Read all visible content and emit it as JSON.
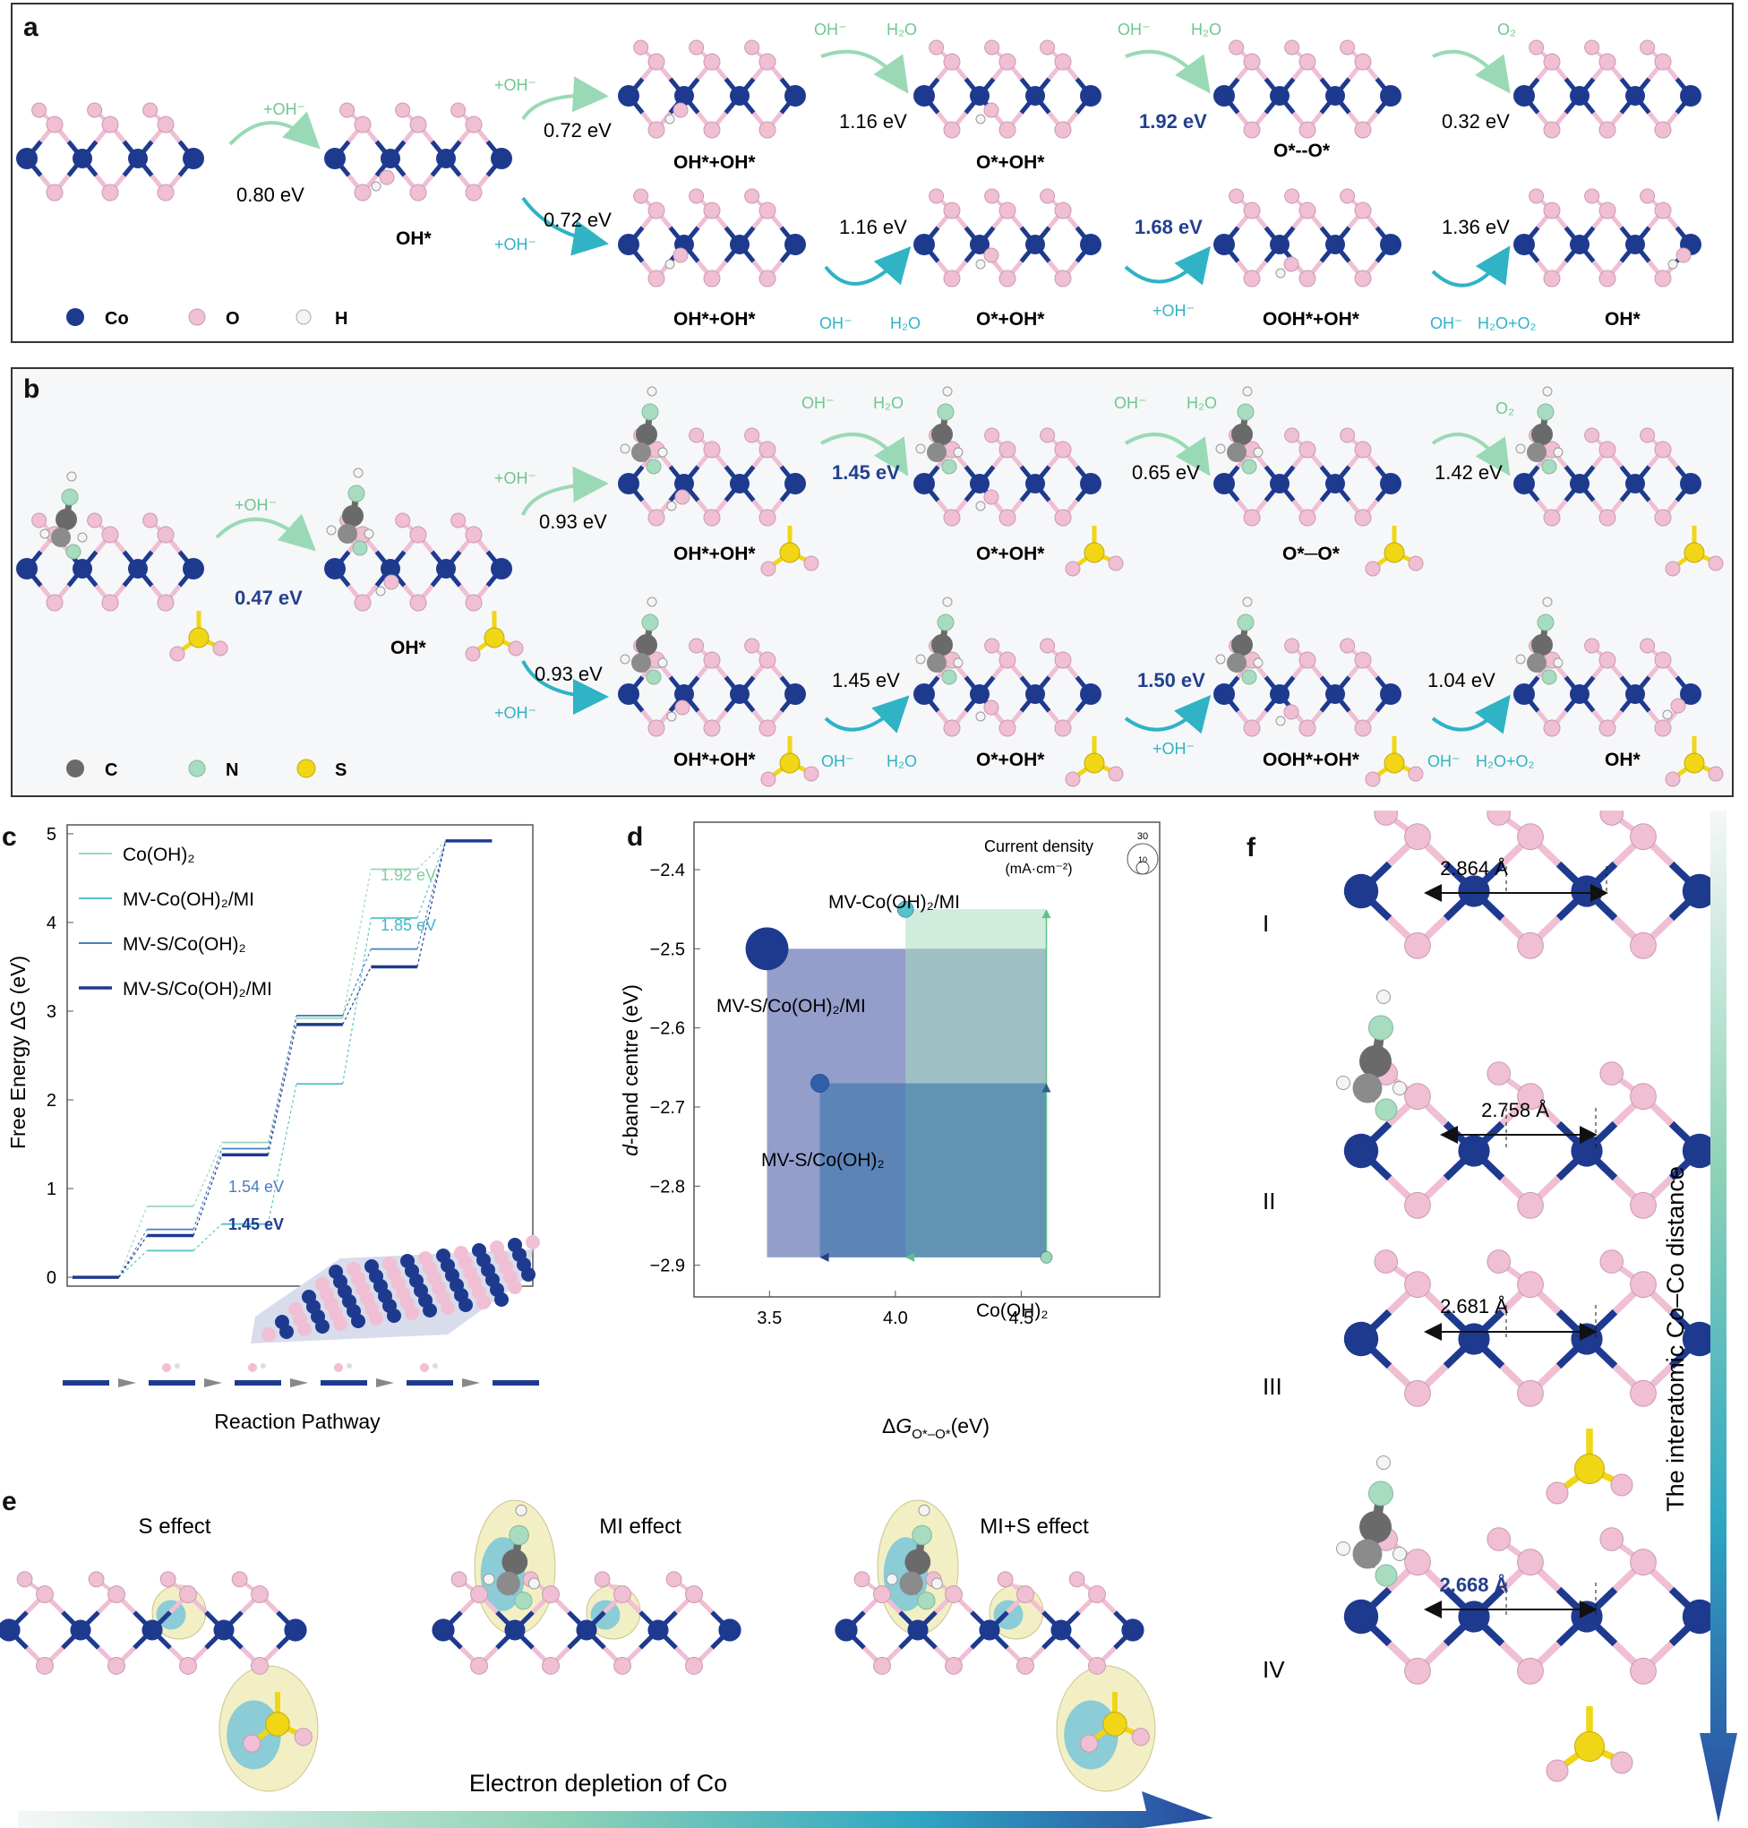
{
  "panel_letters": {
    "a": "a",
    "b": "b",
    "c": "c",
    "d": "d",
    "e": "e",
    "f": "f"
  },
  "colors": {
    "co": "#1e3a8f",
    "o": "#f0bfd4",
    "h": "#f4f4f4",
    "c": "#6a6a6a",
    "n": "#a8dcc0",
    "s": "#f1d615",
    "green": "#7fcf98",
    "teal": "#2fb3c5",
    "blue": "#23408e"
  },
  "panel_a": {
    "step1": {
      "reagent": "+OH⁻",
      "energy": "0.80 eV",
      "product": "OH*"
    },
    "top": {
      "branch_reagent": "+OH⁻",
      "branch_energy": "0.72 eV",
      "s2_label": "OH*+OH*",
      "s2_in": "OH⁻",
      "s2_out": "H₂O",
      "s2_energy": "1.16 eV",
      "s3_label": "O*+OH*",
      "s3_in": "OH⁻",
      "s3_out": "H₂O",
      "s3_energy": "1.92 eV",
      "s4_label": "O*--O*",
      "s4_out": "O₂",
      "s4_energy": "0.32 eV"
    },
    "bottom": {
      "branch_reagent": "+OH⁻",
      "branch_energy": "0.72 eV",
      "s2_label": "OH*+OH*",
      "s2_energy": "1.16 eV",
      "s2_in": "OH⁻",
      "s2_out": "H₂O",
      "s3_label": "O*+OH*",
      "s3_energy": "1.68 eV",
      "s3_reagent": "+OH⁻",
      "s4_label": "OOH*+OH*",
      "s4_energy": "1.36 eV",
      "s4_in": "OH⁻",
      "s4_out": "H₂O+O₂",
      "s5_label": "OH*"
    },
    "legend": [
      "Co",
      "O",
      "H"
    ]
  },
  "panel_b": {
    "step1": {
      "reagent": "+OH⁻",
      "energy": "0.47 eV",
      "product": "OH*"
    },
    "top": {
      "branch_reagent": "+OH⁻",
      "branch_energy": "0.93 eV",
      "s2_label": "OH*+OH*",
      "s2_in": "OH⁻",
      "s2_out": "H₂O",
      "s2_energy": "1.45 eV",
      "s3_label": "O*+OH*",
      "s3_in": "OH⁻",
      "s3_out": "H₂O",
      "s3_energy": "0.65 eV",
      "s4_label": "O*─O*",
      "s4_out": "O₂",
      "s4_energy": "1.42 eV"
    },
    "bottom": {
      "branch_reagent": "+OH⁻",
      "branch_energy": "0.93 eV",
      "s2_label": "OH*+OH*",
      "s2_energy": "1.45 eV",
      "s2_in": "OH⁻",
      "s2_out": "H₂O",
      "s3_label": "O*+OH*",
      "s3_energy": "1.50 eV",
      "s3_reagent": "+OH⁻",
      "s4_label": "OOH*+OH*",
      "s4_energy": "1.04 eV",
      "s4_in": "OH⁻",
      "s4_out": "H₂O+O₂",
      "s5_label": "OH*"
    },
    "legend": [
      "C",
      "N",
      "S"
    ]
  },
  "panel_c": {
    "ylabel": "Free Energy ΔG (eV)",
    "xlabel": "Reaction Pathway",
    "legend": [
      "Co(OH)₂",
      "MV-Co(OH)₂/MI",
      "MV-S/Co(OH)₂",
      "MV-S/Co(OH)₂/MI"
    ],
    "annotations": [
      "1.92 eV",
      "1.85 eV",
      "1.54 eV",
      "1.45 eV"
    ]
  },
  "chart_data": [
    {
      "type": "line",
      "title": "",
      "xlabel": "Reaction Pathway",
      "ylabel": "Free Energy ΔG (eV)",
      "ylim": [
        -0.1,
        5.1
      ],
      "yticks": [
        0,
        1,
        2,
        3,
        4,
        5
      ],
      "categories": [
        "0",
        "1",
        "2",
        "3",
        "4",
        "5"
      ],
      "series": [
        {
          "name": "Co(OH)₂",
          "values": [
            0,
            0.8,
            1.52,
            2.92,
            4.6,
            4.92
          ],
          "color": "#9ad9b5"
        },
        {
          "name": "MV-Co(OH)₂/MI",
          "values": [
            0,
            0.3,
            0.6,
            2.18,
            4.05,
            4.92
          ],
          "color": "#55c2cc"
        },
        {
          "name": "MV-S/Co(OH)₂",
          "values": [
            0,
            0.54,
            1.45,
            2.95,
            3.7,
            4.92
          ],
          "color": "#4a7cc0"
        },
        {
          "name": "MV-S/Co(OH)₂/MI",
          "values": [
            0,
            0.47,
            1.38,
            2.85,
            3.5,
            4.92
          ],
          "color": "#1e3a8f"
        }
      ],
      "annotations": [
        {
          "text": "1.92 eV",
          "color": "#7fcf98"
        },
        {
          "text": "1.85 eV",
          "color": "#3fb8c8"
        },
        {
          "text": "1.54 eV",
          "color": "#4a7cc0"
        },
        {
          "text": "1.45 eV",
          "color": "#1e3a8f"
        }
      ]
    },
    {
      "type": "scatter",
      "title": "",
      "xlabel": "ΔG O*–O* (eV)",
      "ylabel": "d-band centre (eV)",
      "xlim": [
        3.2,
        5.05
      ],
      "ylim": [
        -2.94,
        -2.34
      ],
      "xticks": [
        3.5,
        4.0,
        4.5
      ],
      "yticks": [
        -2.4,
        -2.5,
        -2.6,
        -2.7,
        -2.8,
        -2.9
      ],
      "size_legend_title": "Current density",
      "size_legend_unit": "(mA·cm⁻²)",
      "size_legend_values": [
        "30",
        "10"
      ],
      "points": [
        {
          "label": "Co(OH)₂",
          "x": 4.6,
          "y": -2.89,
          "current": 0.5,
          "color": "#9ad9b5"
        },
        {
          "label": "MV-Co(OH)₂/MI",
          "x": 4.04,
          "y": -2.45,
          "current": 2,
          "color": "#55c2cc"
        },
        {
          "label": "MV-S/Co(OH)₂",
          "x": 3.7,
          "y": -2.67,
          "current": 3,
          "color": "#2f5fa8"
        },
        {
          "label": "MV-S/Co(OH)₂/MI",
          "x": 3.49,
          "y": -2.5,
          "current": 30,
          "color": "#1e3a8f"
        }
      ]
    }
  ],
  "panel_e": {
    "labels": [
      "S effect",
      "MI effect",
      "MI+S effect"
    ],
    "arrow_label": "Electron depletion of Co"
  },
  "panel_f": {
    "rows": [
      {
        "roman": "I",
        "distance": "2.864 Å"
      },
      {
        "roman": "II",
        "distance": "2.758 Å"
      },
      {
        "roman": "III",
        "distance": "2.681 Å"
      },
      {
        "roman": "IV",
        "distance": "2.668 Å"
      }
    ],
    "arrow_label": "The interatomic Co–Co distance"
  }
}
